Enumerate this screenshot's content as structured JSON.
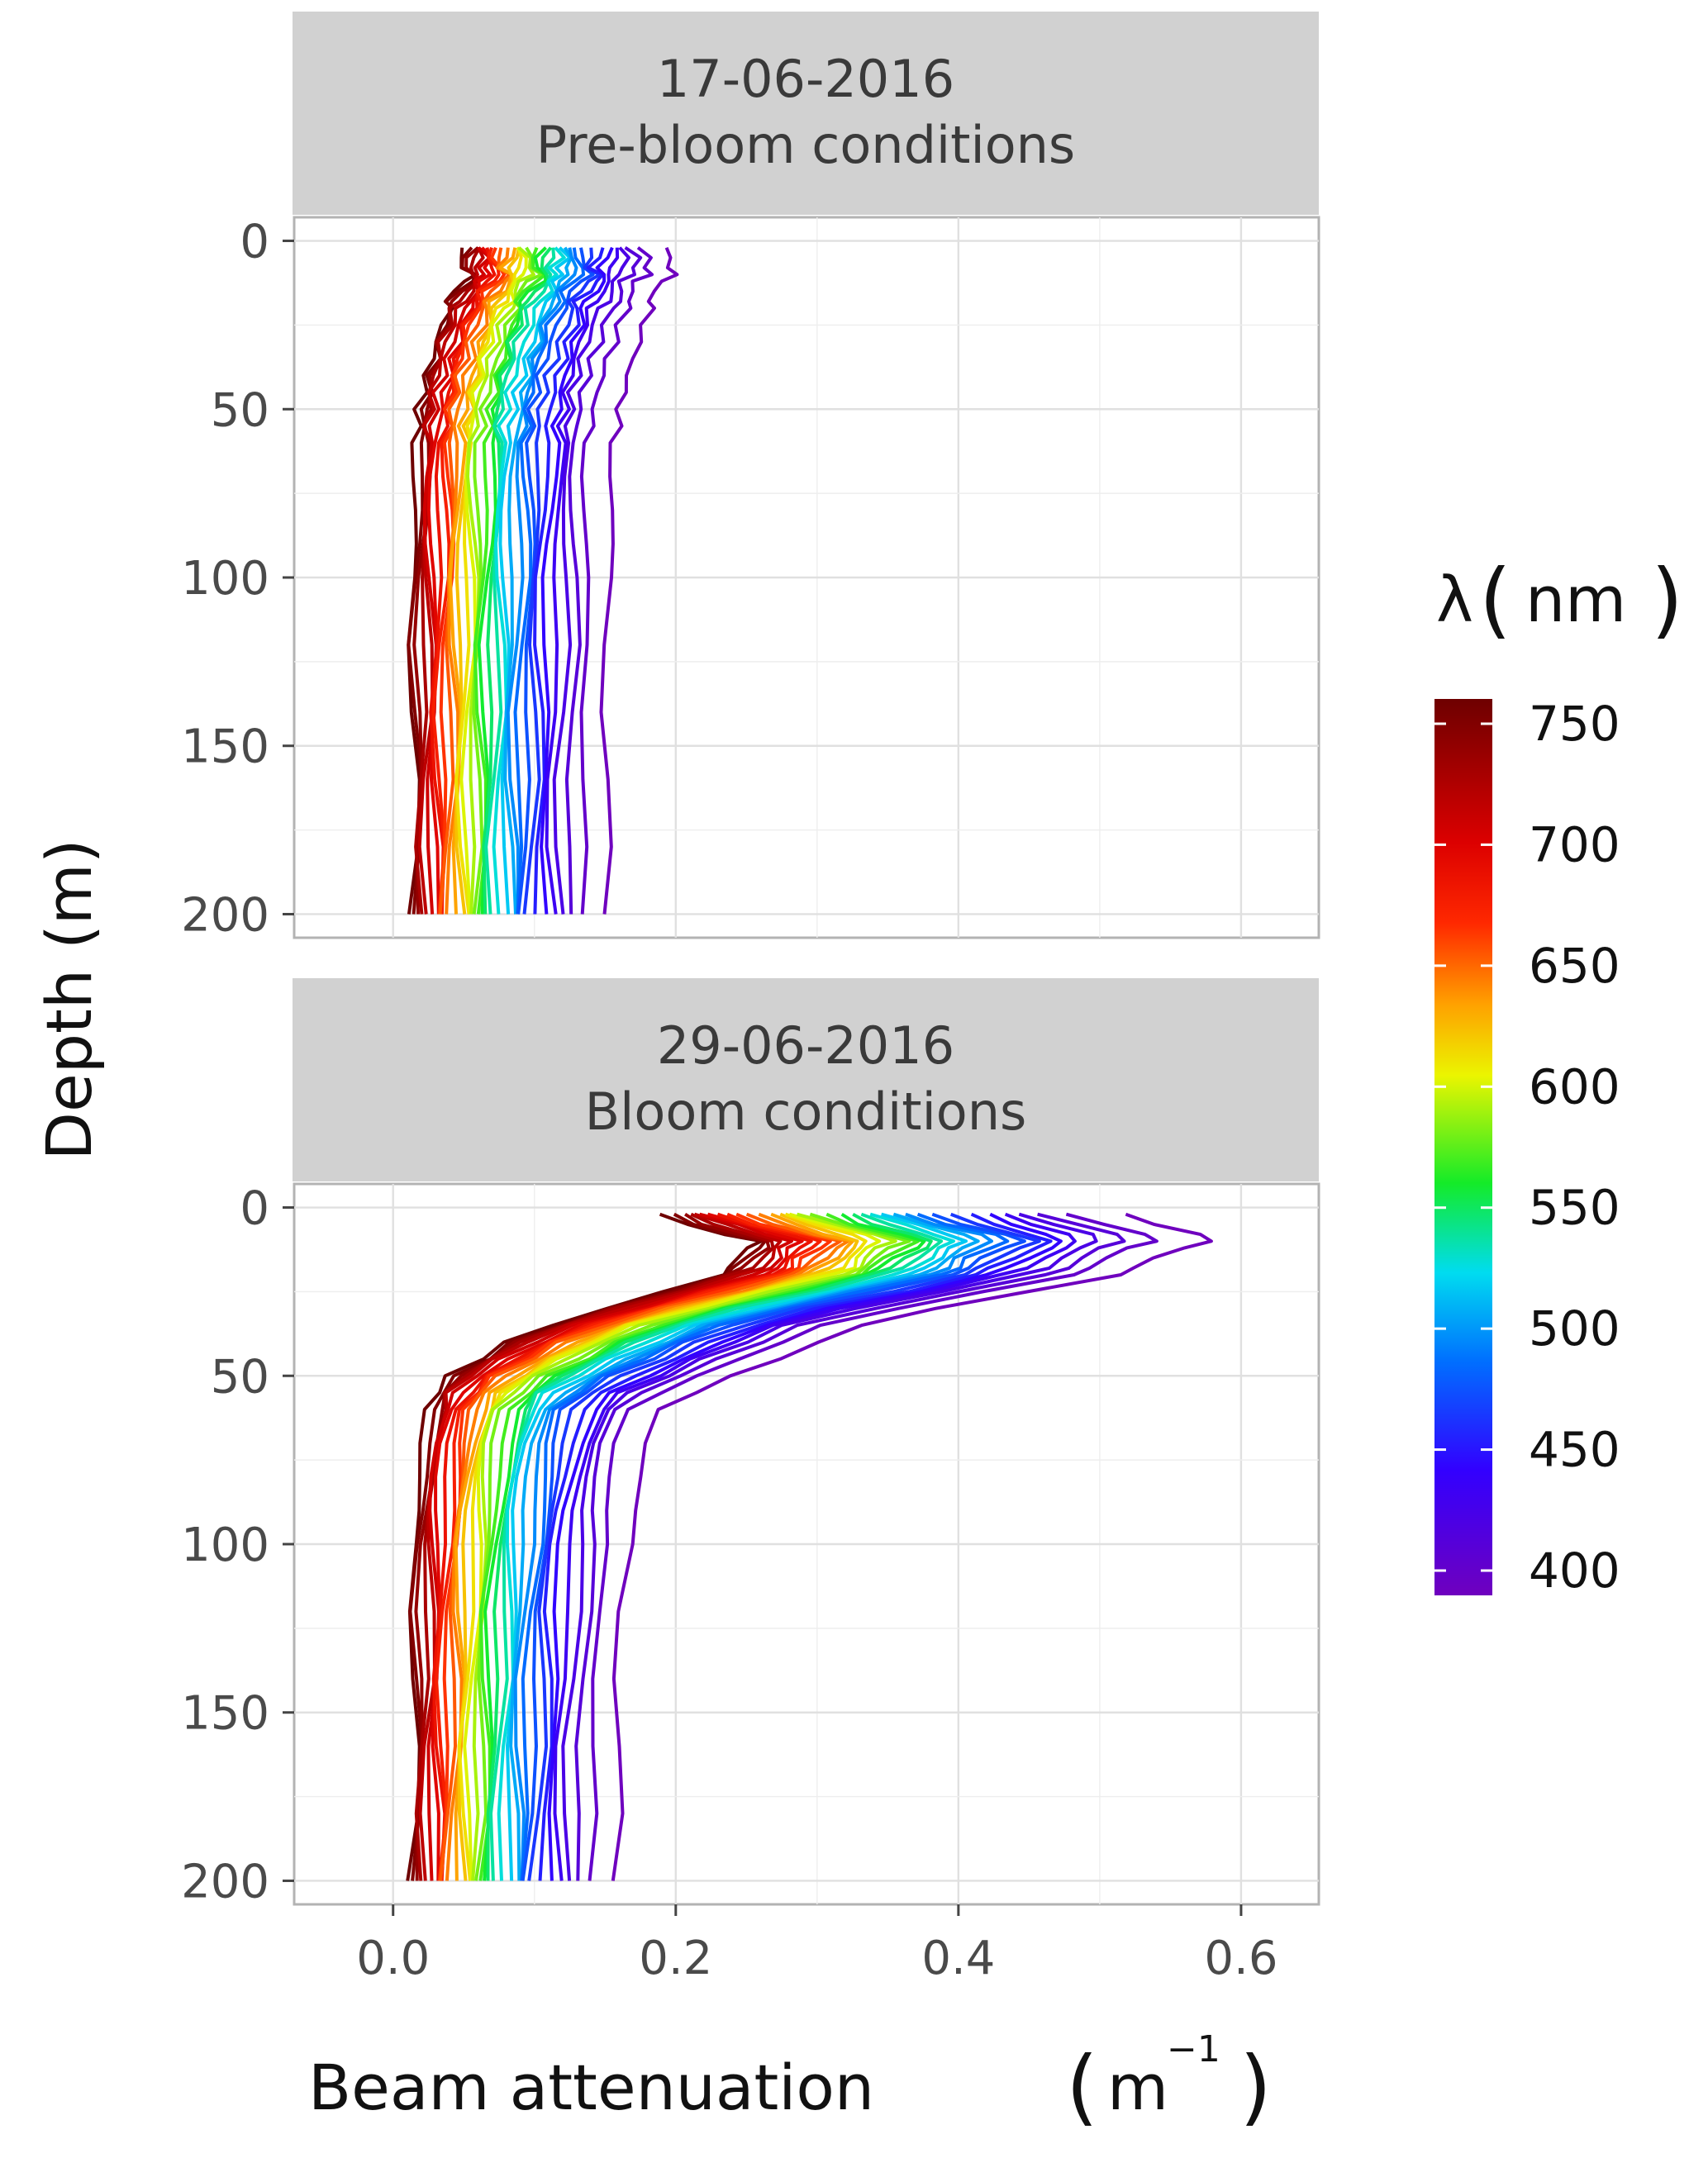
{
  "chart_data": [
    {
      "type": "line",
      "strip": {
        "date": "17-06-2016",
        "subtitle": "Pre-bloom conditions"
      },
      "xlim": [
        -0.07,
        0.655
      ],
      "ylim": [
        207,
        -7
      ],
      "x_ticks": [
        0.0,
        0.2,
        0.4,
        0.6
      ],
      "y_ticks": [
        0,
        50,
        100,
        150,
        200
      ],
      "grid": true,
      "depth_m": [
        2,
        5,
        8,
        10,
        12,
        15,
        18,
        20,
        25,
        30,
        35,
        40,
        45,
        50,
        55,
        60,
        70,
        80,
        90,
        100,
        120,
        140,
        160,
        180,
        200
      ],
      "series_note_wavelengths": "400-750 nm every 10 nm",
      "wavelengths_nm": [
        400,
        410,
        420,
        430,
        440,
        450,
        460,
        470,
        480,
        490,
        500,
        510,
        520,
        530,
        540,
        550,
        560,
        570,
        580,
        590,
        600,
        610,
        620,
        630,
        640,
        650,
        660,
        670,
        680,
        690,
        700,
        710,
        720,
        730,
        740,
        750
      ],
      "reference_profiles": {
        "400": [
          0.195,
          0.198,
          0.193,
          0.197,
          0.19,
          0.187,
          0.182,
          0.18,
          0.176,
          0.172,
          0.168,
          0.164,
          0.161,
          0.159,
          0.157,
          0.156,
          0.155,
          0.155,
          0.154,
          0.153,
          0.152,
          0.151,
          0.15,
          0.149,
          0.149
        ],
        "750": [
          0.05,
          0.05,
          0.049,
          0.053,
          0.05,
          0.044,
          0.04,
          0.038,
          0.033,
          0.029,
          0.026,
          0.023,
          0.02,
          0.018,
          0.017,
          0.016,
          0.015,
          0.015,
          0.015,
          0.015,
          0.014,
          0.014,
          0.014,
          0.014,
          0.014
        ]
      }
    },
    {
      "type": "line",
      "strip": {
        "date": "29-06-2016",
        "subtitle": "Bloom conditions"
      },
      "xlim": [
        -0.07,
        0.655
      ],
      "ylim": [
        207,
        -7
      ],
      "x_ticks": [
        0.0,
        0.2,
        0.4,
        0.6
      ],
      "y_ticks": [
        0,
        50,
        100,
        150,
        200
      ],
      "grid": true,
      "depth_m": [
        2,
        5,
        8,
        10,
        12,
        15,
        18,
        20,
        25,
        30,
        35,
        40,
        45,
        50,
        55,
        60,
        70,
        80,
        90,
        100,
        120,
        140,
        160,
        180,
        200
      ],
      "wavelengths_nm": [
        400,
        410,
        420,
        430,
        440,
        450,
        460,
        470,
        480,
        490,
        500,
        510,
        520,
        530,
        540,
        550,
        560,
        570,
        580,
        590,
        600,
        610,
        620,
        630,
        640,
        650,
        660,
        670,
        680,
        690,
        700,
        710,
        720,
        730,
        740,
        750
      ],
      "reference_profiles": {
        "400": [
          0.52,
          0.54,
          0.57,
          0.575,
          0.56,
          0.54,
          0.525,
          0.51,
          0.45,
          0.38,
          0.33,
          0.3,
          0.27,
          0.24,
          0.21,
          0.19,
          0.18,
          0.175,
          0.17,
          0.168,
          0.162,
          0.16,
          0.158,
          0.157,
          0.155
        ],
        "750": [
          0.19,
          0.21,
          0.235,
          0.255,
          0.25,
          0.245,
          0.24,
          0.23,
          0.19,
          0.15,
          0.11,
          0.08,
          0.06,
          0.04,
          0.03,
          0.025,
          0.02,
          0.018,
          0.017,
          0.016,
          0.015,
          0.015,
          0.014,
          0.014,
          0.013
        ]
      }
    }
  ],
  "axes": {
    "y_title": "Depth (m)",
    "x_title": "Beam attenuation",
    "x_unit_base": "m",
    "x_unit_exp": "−1"
  },
  "legend": {
    "title_symbol": "λ",
    "title_unit": "nm",
    "position": "right",
    "range": [
      400,
      750
    ],
    "labels": [
      "750",
      "700",
      "650",
      "600",
      "550",
      "500",
      "450",
      "400"
    ]
  }
}
